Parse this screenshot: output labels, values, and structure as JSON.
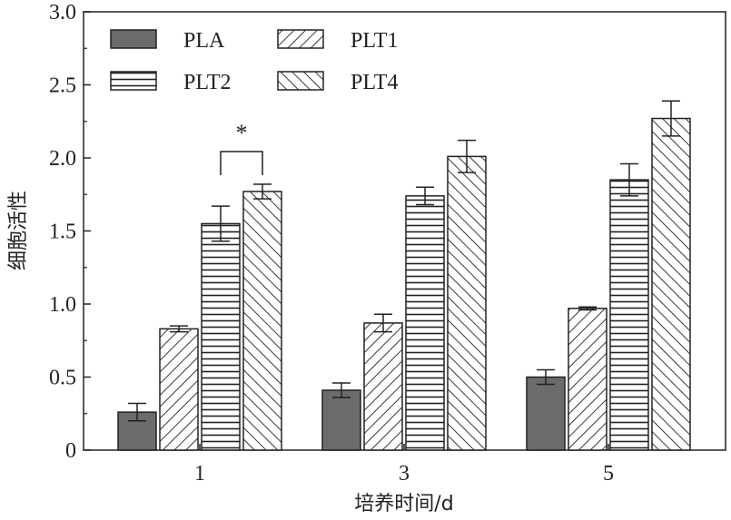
{
  "chart_data": {
    "type": "bar",
    "title": "",
    "xlabel": "培养时间/d",
    "ylabel": "细胞活性",
    "ylim": [
      0,
      3.0
    ],
    "yticks": [
      "0",
      "0.5",
      "1.0",
      "1.5",
      "2.0",
      "2.5",
      "3.0"
    ],
    "categories": [
      "1",
      "3",
      "5"
    ],
    "series": [
      {
        "name": "PLA",
        "values": [
          0.26,
          0.41,
          0.5
        ],
        "errors": [
          0.06,
          0.05,
          0.05
        ],
        "pattern": "solid"
      },
      {
        "name": "PLT1",
        "values": [
          0.83,
          0.87,
          0.97
        ],
        "errors": [
          0.02,
          0.06,
          0.01
        ],
        "pattern": "diag-right"
      },
      {
        "name": "PLT2",
        "values": [
          1.55,
          1.74,
          1.85
        ],
        "errors": [
          0.12,
          0.06,
          0.11
        ],
        "pattern": "horizontal"
      },
      {
        "name": "PLT4",
        "values": [
          1.77,
          2.01,
          2.27
        ],
        "errors": [
          0.05,
          0.11,
          0.12
        ],
        "pattern": "diag-left"
      }
    ],
    "annotations": [
      {
        "text": "*",
        "category": "1",
        "between": [
          "PLT2",
          "PLT4"
        ]
      }
    ],
    "legend_position": "top-left",
    "grid": false,
    "colors": {
      "solid_fill": "#6b6b6b",
      "stroke": "#222222",
      "background": "#ffffff"
    }
  }
}
